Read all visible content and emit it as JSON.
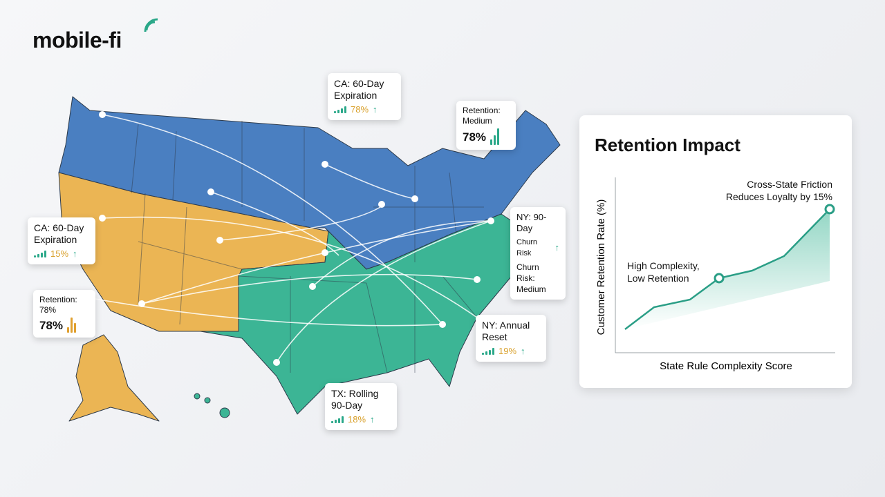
{
  "logo": "mobile-fi",
  "callouts": [
    {
      "title": "CA: 60-Day Expiration",
      "value": "78%"
    },
    {
      "title": "Retention: Medium",
      "value": "78%"
    },
    {
      "title": "CA: 60-Day Expiration",
      "value": "15%"
    },
    {
      "title": "Retention: 78%",
      "value": "78%"
    },
    {
      "title": "NY: 90-Day",
      "line": "Churn Risk",
      "detail": "Churn Risk: Medium"
    },
    {
      "title": "NY: Annual Reset",
      "value": "19%"
    },
    {
      "title": "TX: Rolling 90-Day",
      "value": "18%"
    }
  ],
  "retention_chart": {
    "title": "Retention Impact",
    "y_label": "Customer Retention Rate (%)",
    "x_label": "State Rule Complexity Score",
    "annotations": [
      "Cross-State Friction Reduces Loyalty by 15%",
      "High Complexity, Low Retention"
    ]
  }
}
